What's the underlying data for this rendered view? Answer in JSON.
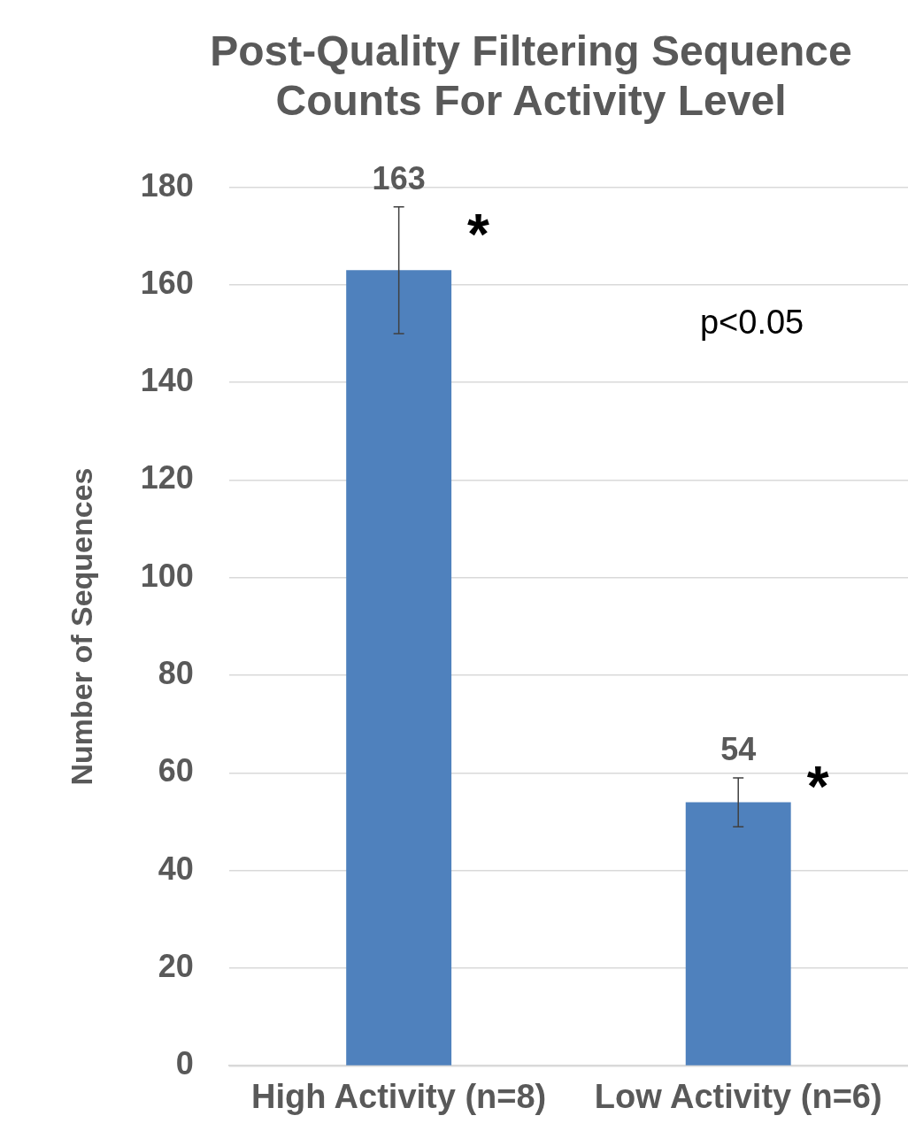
{
  "chart_data": {
    "type": "bar",
    "title": "Post-Quality Filtering Sequence Counts For Activity Level",
    "ylabel": "Number of Sequences",
    "categories": [
      "High Activity (n=8)",
      "Low Activity (n=6)"
    ],
    "values": [
      163,
      54
    ],
    "color": "#4f81bd",
    "errors": [
      [
        150,
        176
      ],
      [
        49,
        59
      ]
    ],
    "data_labels": true,
    "ylim": [
      0,
      180
    ],
    "yticks": [
      0,
      20,
      40,
      60,
      80,
      100,
      120,
      140,
      160,
      180
    ],
    "grid": "y",
    "legend": false,
    "annotations": [
      {
        "text": "*",
        "x": "High Activity (n=8)",
        "y": 172
      },
      {
        "text": "*",
        "x": "Low Activity (n=6)",
        "y": 59
      },
      "p<0.05"
    ]
  }
}
